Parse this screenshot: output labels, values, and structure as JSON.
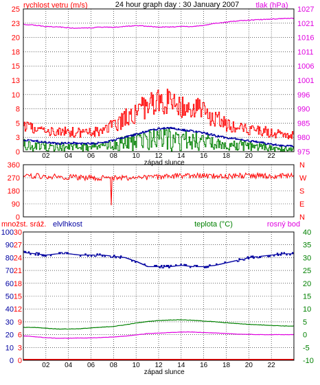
{
  "header": {
    "left_label": "rychlost vetru (m/s)",
    "title": "24 hour graph day : 30 January 2007",
    "right_label": "tlak (hPa)"
  },
  "colors": {
    "background": "#ffffff",
    "frame": "#000000",
    "grid": "#000000",
    "red": "#ff0000",
    "green": "#008000",
    "blue": "#0000a0",
    "magenta": "#e000e0",
    "left_axis_wind": "#ff0000",
    "right_axis_pressure": "#e000e0",
    "left_axis_humidity": "#0000a0",
    "left_axis_rain": "#ff0000",
    "right_axis_temp": "#008000"
  },
  "chart_data": [
    {
      "id": "wind_pressure",
      "type": "line",
      "title": "24 hour graph day : 30 January 2007",
      "xlabel": "západ slunce",
      "x_tick_labels": [
        "02",
        "04",
        "06",
        "08",
        "10",
        "12",
        "14",
        "16",
        "18",
        "20",
        "22"
      ],
      "xlim": [
        0,
        24
      ],
      "left_axis": {
        "label": "rychlost vetru (m/s)",
        "ylim": [
          0,
          25
        ],
        "ticks": [
          "0",
          "3",
          "5",
          "8",
          "10",
          "13",
          "15",
          "18",
          "20",
          "23",
          "25"
        ]
      },
      "right_axis": {
        "label": "tlak (hPa)",
        "ylim": [
          975,
          1027
        ],
        "ticks": [
          "975",
          "980",
          "985",
          "990",
          "996",
          "1001",
          "1006",
          "1011",
          "1016",
          "1021",
          "1027"
        ]
      },
      "grid": true,
      "series": [
        {
          "axis": "right",
          "color": "#e000e0",
          "points": [
            [
              0,
              1021.3
            ],
            [
              1,
              1021.1
            ],
            [
              2,
              1020.6
            ],
            [
              3,
              1020.5
            ],
            [
              4,
              1020.1
            ],
            [
              5,
              1020.0
            ],
            [
              6,
              1020.1
            ],
            [
              7,
              1020.4
            ],
            [
              8,
              1020.3
            ],
            [
              9,
              1020.6
            ],
            [
              10,
              1020.9
            ],
            [
              11,
              1020.7
            ],
            [
              12,
              1020.4
            ],
            [
              13,
              1020.4
            ],
            [
              14,
              1020.6
            ],
            [
              15,
              1020.6
            ],
            [
              16,
              1021.0
            ],
            [
              17,
              1021.8
            ],
            [
              18,
              1022.2
            ],
            [
              19,
              1022.6
            ],
            [
              20,
              1022.9
            ],
            [
              21,
              1023.1
            ],
            [
              22,
              1023.3
            ],
            [
              23,
              1023.5
            ],
            [
              24,
              1023.6
            ]
          ]
        },
        {
          "axis": "left",
          "color": "#ff0000",
          "points": [
            [
              0,
              4.5
            ],
            [
              1,
              3.8
            ],
            [
              2,
              3.5
            ],
            [
              3,
              3.3
            ],
            [
              4,
              3.5
            ],
            [
              5,
              3.3
            ],
            [
              6,
              3.2
            ],
            [
              7,
              3.8
            ],
            [
              8,
              4.5
            ],
            [
              9,
              5.8
            ],
            [
              10,
              7.0
            ],
            [
              11,
              8.0
            ],
            [
              12,
              8.8
            ],
            [
              13,
              8.6
            ],
            [
              14,
              7.5
            ],
            [
              15,
              7.8
            ],
            [
              16,
              6.8
            ],
            [
              17,
              5.8
            ],
            [
              18,
              4.8
            ],
            [
              19,
              4.5
            ],
            [
              20,
              4.0
            ],
            [
              21,
              3.8
            ],
            [
              22,
              3.2
            ],
            [
              23,
              3.0
            ],
            [
              24,
              2.8
            ]
          ]
        },
        {
          "axis": "left",
          "color": "#0000a0",
          "points": [
            [
              0,
              2.0
            ],
            [
              1,
              1.9
            ],
            [
              2,
              1.6
            ],
            [
              3,
              1.4
            ],
            [
              4,
              1.6
            ],
            [
              5,
              1.4
            ],
            [
              6,
              1.4
            ],
            [
              7,
              1.6
            ],
            [
              8,
              2.0
            ],
            [
              9,
              2.5
            ],
            [
              10,
              3.1
            ],
            [
              11,
              3.6
            ],
            [
              12,
              4.0
            ],
            [
              13,
              4.2
            ],
            [
              14,
              3.8
            ],
            [
              15,
              3.6
            ],
            [
              16,
              3.3
            ],
            [
              17,
              2.8
            ],
            [
              18,
              2.4
            ],
            [
              19,
              2.2
            ],
            [
              20,
              1.9
            ],
            [
              21,
              1.6
            ],
            [
              22,
              1.3
            ],
            [
              23,
              1.0
            ],
            [
              24,
              1.0
            ]
          ]
        },
        {
          "axis": "left",
          "color": "#008000",
          "points": [
            [
              0,
              1.4
            ],
            [
              1,
              1.2
            ],
            [
              2,
              1.0
            ],
            [
              3,
              0.9
            ],
            [
              4,
              1.0
            ],
            [
              5,
              0.9
            ],
            [
              6,
              0.9
            ],
            [
              7,
              1.1
            ],
            [
              8,
              1.3
            ],
            [
              9,
              1.7
            ],
            [
              10,
              2.0
            ],
            [
              11,
              2.3
            ],
            [
              12,
              2.6
            ],
            [
              13,
              2.6
            ],
            [
              14,
              2.4
            ],
            [
              15,
              2.3
            ],
            [
              16,
              2.0
            ],
            [
              17,
              1.7
            ],
            [
              18,
              1.5
            ],
            [
              19,
              1.4
            ],
            [
              20,
              1.2
            ],
            [
              21,
              1.0
            ],
            [
              22,
              0.8
            ],
            [
              23,
              0.6
            ],
            [
              24,
              0.6
            ]
          ]
        }
      ]
    },
    {
      "id": "wind_direction",
      "type": "line",
      "left_axis": {
        "ylim": [
          0,
          360
        ],
        "ticks": [
          "0",
          "90",
          "180",
          "270",
          "360"
        ]
      },
      "right_axis": {
        "ticks": [
          "N",
          "E",
          "S",
          "W",
          "N"
        ]
      },
      "xlim": [
        0,
        24
      ],
      "grid": true,
      "series": [
        {
          "axis": "left",
          "color": "#ff0000",
          "points": [
            [
              0,
              285
            ],
            [
              2,
              280
            ],
            [
              4,
              275
            ],
            [
              6,
              270
            ],
            [
              8,
              268
            ],
            [
              10,
              272
            ],
            [
              12,
              275
            ],
            [
              14,
              285
            ],
            [
              16,
              282
            ],
            [
              18,
              280
            ],
            [
              20,
              285
            ],
            [
              22,
              283
            ],
            [
              24,
              282
            ]
          ]
        }
      ],
      "spikes": [
        [
          7.8,
          80
        ]
      ]
    },
    {
      "id": "humidity_temp_rain",
      "type": "line",
      "labels": {
        "rain": "množst. sráž.",
        "humidity": "elvlhkost",
        "temp": "teplota (°C)",
        "dew": "rosný bod"
      },
      "xlabel": "západ slunce",
      "x_tick_labels": [
        "02",
        "04",
        "06",
        "08",
        "10",
        "12",
        "14",
        "16",
        "18",
        "20",
        "22"
      ],
      "xlim": [
        0,
        24
      ],
      "rain_axis": {
        "ylim": [
          0,
          30
        ],
        "ticks": [
          "0",
          "3",
          "6",
          "9",
          "12",
          "15",
          "18",
          "21",
          "24",
          "27",
          "30"
        ]
      },
      "humidity_axis": {
        "ylim": [
          0,
          100
        ],
        "ticks": [
          "0",
          "10",
          "20",
          "30",
          "40",
          "50",
          "60",
          "70",
          "80",
          "90",
          "100"
        ]
      },
      "temp_axis": {
        "ylim": [
          -10,
          40
        ],
        "ticks": [
          "-10",
          "-5",
          "0",
          "5",
          "10",
          "15",
          "20",
          "25",
          "30",
          "35",
          "40"
        ]
      },
      "grid": true,
      "series": [
        {
          "axis": "humidity",
          "color": "#0000a0",
          "points": [
            [
              0,
              84
            ],
            [
              1,
              83
            ],
            [
              2,
              82
            ],
            [
              3,
              83
            ],
            [
              4,
              83
            ],
            [
              5,
              82
            ],
            [
              6,
              82
            ],
            [
              7,
              82
            ],
            [
              8,
              81
            ],
            [
              9,
              80
            ],
            [
              10,
              77
            ],
            [
              11,
              73
            ],
            [
              12,
              73
            ],
            [
              13,
              73
            ],
            [
              14,
              74
            ],
            [
              15,
              73
            ],
            [
              16,
              73
            ],
            [
              17,
              74
            ],
            [
              18,
              76
            ],
            [
              19,
              78
            ],
            [
              20,
              80
            ],
            [
              21,
              81
            ],
            [
              22,
              82
            ],
            [
              23,
              83
            ],
            [
              24,
              83
            ]
          ]
        },
        {
          "axis": "temp",
          "color": "#008000",
          "points": [
            [
              0,
              2.8
            ],
            [
              1,
              2.8
            ],
            [
              2,
              2.5
            ],
            [
              3,
              2.2
            ],
            [
              4,
              2.2
            ],
            [
              5,
              2.3
            ],
            [
              6,
              2.6
            ],
            [
              7,
              2.9
            ],
            [
              8,
              3.2
            ],
            [
              9,
              3.8
            ],
            [
              10,
              4.5
            ],
            [
              11,
              5.1
            ],
            [
              12,
              5.5
            ],
            [
              13,
              5.7
            ],
            [
              14,
              5.8
            ],
            [
              15,
              5.6
            ],
            [
              16,
              5.3
            ],
            [
              17,
              5.0
            ],
            [
              18,
              4.6
            ],
            [
              19,
              4.3
            ],
            [
              20,
              4.0
            ],
            [
              21,
              3.8
            ],
            [
              22,
              3.6
            ],
            [
              23,
              3.4
            ],
            [
              24,
              3.3
            ]
          ]
        },
        {
          "axis": "temp",
          "color": "#e000e0",
          "points": [
            [
              0,
              -0.5
            ],
            [
              1,
              -0.8
            ],
            [
              2,
              -1.2
            ],
            [
              3,
              -1.4
            ],
            [
              4,
              -1.4
            ],
            [
              5,
              -1.3
            ],
            [
              6,
              -1.3
            ],
            [
              7,
              -1.1
            ],
            [
              8,
              -0.9
            ],
            [
              9,
              -0.6
            ],
            [
              10,
              -0.1
            ],
            [
              11,
              0.4
            ],
            [
              12,
              0.6
            ],
            [
              13,
              0.8
            ],
            [
              14,
              1.0
            ],
            [
              15,
              1.0
            ],
            [
              16,
              0.8
            ],
            [
              17,
              0.7
            ],
            [
              18,
              0.4
            ],
            [
              19,
              0.2
            ],
            [
              20,
              0.1
            ],
            [
              21,
              0.0
            ],
            [
              22,
              0.0
            ],
            [
              23,
              0.0
            ],
            [
              24,
              0.0
            ]
          ]
        },
        {
          "axis": "rain",
          "color": "#ff0000",
          "points": [
            [
              0,
              0
            ],
            [
              24,
              0
            ]
          ]
        }
      ]
    }
  ]
}
